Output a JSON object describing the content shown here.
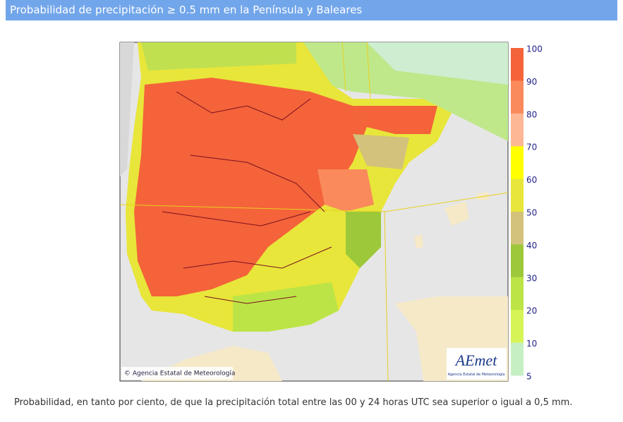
{
  "header": {
    "title": "Probabilidad de precipitación ≥ 0.5 mm en la Península y Baleares"
  },
  "legend": {
    "labels": [
      100,
      90,
      80,
      70,
      60,
      50,
      40,
      30,
      20,
      10,
      5
    ],
    "colors": [
      "#f4633a",
      "#fa8a5c",
      "#fdb795",
      "#ffff00",
      "#e8e63a",
      "#d2c27c",
      "#9cc83a",
      "#bce446",
      "#d6f456",
      "#c6f0c4"
    ]
  },
  "map": {
    "copyright": "© Agencia Estatal de Meteorología",
    "logo": "AEmet",
    "logo_subtitle": "Agencia Estatal de Meteorología"
  },
  "caption": "Probabilidad, en tanto por ciento, de que la precipitación total entre las 00 y 24 horas UTC sea superior o igual a 0,5 mm."
}
